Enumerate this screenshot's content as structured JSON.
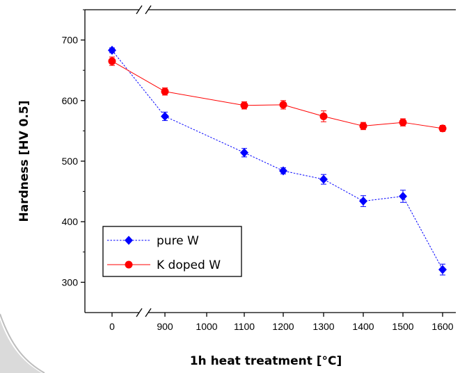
{
  "chart_data": {
    "type": "line",
    "title": "",
    "xlabel": "1h heat treatment [°C]",
    "ylabel": "Hardness [HV 0.5]",
    "categories": [
      "0",
      "900",
      "1000",
      "1100",
      "1200",
      "1300",
      "1400",
      "1500",
      "1600"
    ],
    "axis_break": "between 0 and 900 on the x axis",
    "ylim": [
      250,
      750
    ],
    "yticks": [
      300,
      400,
      500,
      600,
      700
    ],
    "grid": false,
    "legend_position": "bottom-left",
    "series": [
      {
        "name": "pure W",
        "color": "#0000ff",
        "marker": "diamond",
        "line_style": "dotted",
        "x": [
          "0",
          "900",
          "1100",
          "1200",
          "1300",
          "1400",
          "1500",
          "1600"
        ],
        "values": [
          683,
          574,
          514,
          484,
          470,
          434,
          442,
          321
        ],
        "error": [
          4,
          7,
          7,
          5,
          8,
          9,
          10,
          9
        ]
      },
      {
        "name": "K doped W",
        "color": "#ff0000",
        "marker": "circle",
        "line_style": "solid",
        "x": [
          "0",
          "900",
          "1100",
          "1200",
          "1300",
          "1400",
          "1500",
          "1600"
        ],
        "values": [
          665,
          615,
          592,
          593,
          574,
          558,
          564,
          554
        ],
        "error": [
          7,
          6,
          6,
          7,
          9,
          6,
          6,
          5
        ]
      }
    ]
  }
}
